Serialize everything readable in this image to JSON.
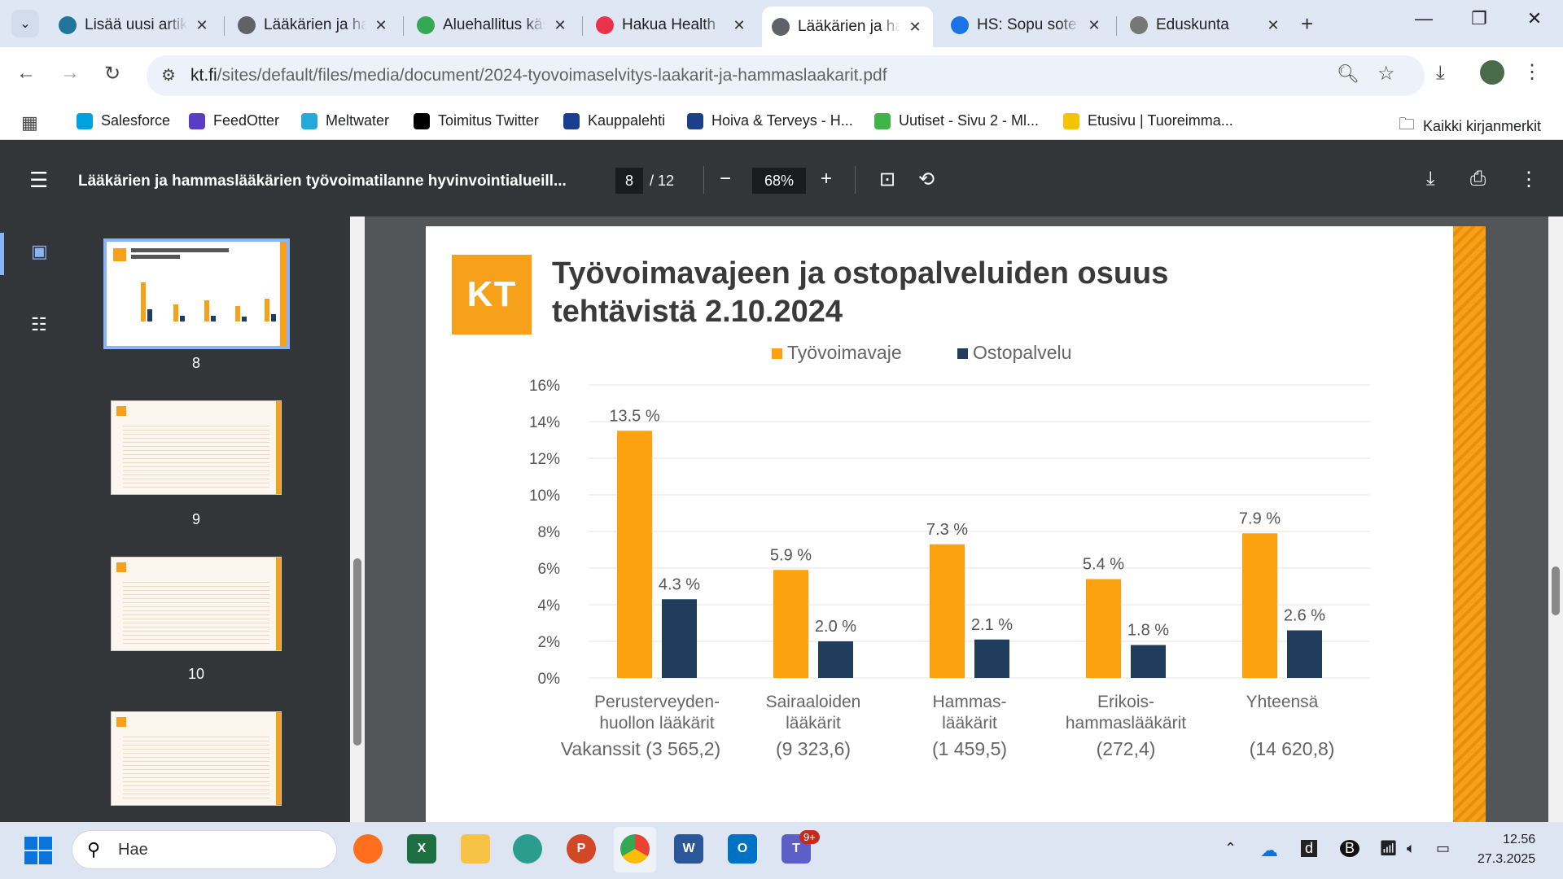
{
  "browser": {
    "tabs": [
      {
        "title": "Lisää uusi artikkeli",
        "icon": "wordpress-icon",
        "color": "#21759b"
      },
      {
        "title": "Lääkärien ja hammaslääkärien",
        "icon": "globe-icon",
        "color": "#5f6368"
      },
      {
        "title": "Aluehallitus käsittelee",
        "icon": "colorful-icon",
        "color": "#34a853"
      },
      {
        "title": "Hakua Health",
        "icon": "health-icon",
        "color": "#e8334a"
      },
      {
        "title": "Lääkärien ja hammaslääkärien",
        "icon": "globe-icon",
        "color": "#5f6368",
        "active": true
      },
      {
        "title": "HS: Sopu sote",
        "icon": "shield-icon",
        "color": "#1a73e8"
      },
      {
        "title": "Eduskunta",
        "icon": "building-icon",
        "color": "#777"
      }
    ],
    "url_host": "kt.fi",
    "url_path": "/sites/default/files/media/document/2024-tyovoimaselvitys-laakarit-ja-hammaslaakarit.pdf",
    "bookmarks": [
      {
        "label": "Salesforce",
        "color": "#00a1e0"
      },
      {
        "label": "FeedOtter",
        "color": "#5b3cc4"
      },
      {
        "label": "Meltwater",
        "color": "#25a9d8"
      },
      {
        "label": "Toimitus Twitter",
        "color": "#000000"
      },
      {
        "label": "Kauppalehti",
        "color": "#1a3d8f"
      },
      {
        "label": "Hoiva & Terveys - H...",
        "color": "#1d3f8a"
      },
      {
        "label": "Uutiset - Sivu 2 - Ml...",
        "color": "#3fb549"
      },
      {
        "label": "Etusivu | Tuoreimma...",
        "color": "#f5c400"
      }
    ],
    "all_bookmarks": "Kaikki kirjanmerkit"
  },
  "pdf": {
    "title": "Lääkärien ja hammaslääkärien työvoimatilanne hyvinvointialueill...",
    "page": "8",
    "total": "/ 12",
    "zoom": "68%",
    "thumbnails": [
      "8",
      "9",
      "10"
    ]
  },
  "slide": {
    "logo": "KT",
    "title_line1": "Työvoimavajeen ja ostopalveluiden osuus",
    "title_line2": "tehtävistä 2.10.2024"
  },
  "chart_data": {
    "type": "bar",
    "categories": [
      "Perusterveyden-\nhuollon lääkärit",
      "Sairaaloiden\nlääkärit",
      "Hammas-\nlääkärit",
      "Erikois-\nhammaslääkärit",
      "Yhteensä"
    ],
    "vacancies_label": "Vakanssit",
    "vacancies": [
      "(3 565,2)",
      "(9 323,6)",
      "(1 459,5)",
      "(272,4)",
      "(14 620,8)"
    ],
    "series": [
      {
        "name": "Työvoimavaje",
        "color": "#fca10f",
        "values": [
          13.5,
          5.9,
          7.3,
          5.4,
          7.9
        ],
        "labels": [
          "13.5 %",
          "5.9 %",
          "7.3 %",
          "5.4 %",
          "7.9 %"
        ]
      },
      {
        "name": "Ostopalvelu",
        "color": "#203d5e",
        "values": [
          4.3,
          2.0,
          2.1,
          1.8,
          2.6
        ],
        "labels": [
          "4.3 %",
          "2.0 %",
          "2.1 %",
          "1.8 %",
          "2.6 %"
        ]
      }
    ],
    "yticks": [
      "0%",
      "2%",
      "4%",
      "6%",
      "8%",
      "10%",
      "12%",
      "14%",
      "16%"
    ],
    "ylim": [
      0,
      16
    ],
    "grid": true,
    "legend": "top-center"
  },
  "taskbar": {
    "search": "Hae",
    "time": "12.56",
    "date": "27.3.2025",
    "teams_badge": "9+"
  }
}
